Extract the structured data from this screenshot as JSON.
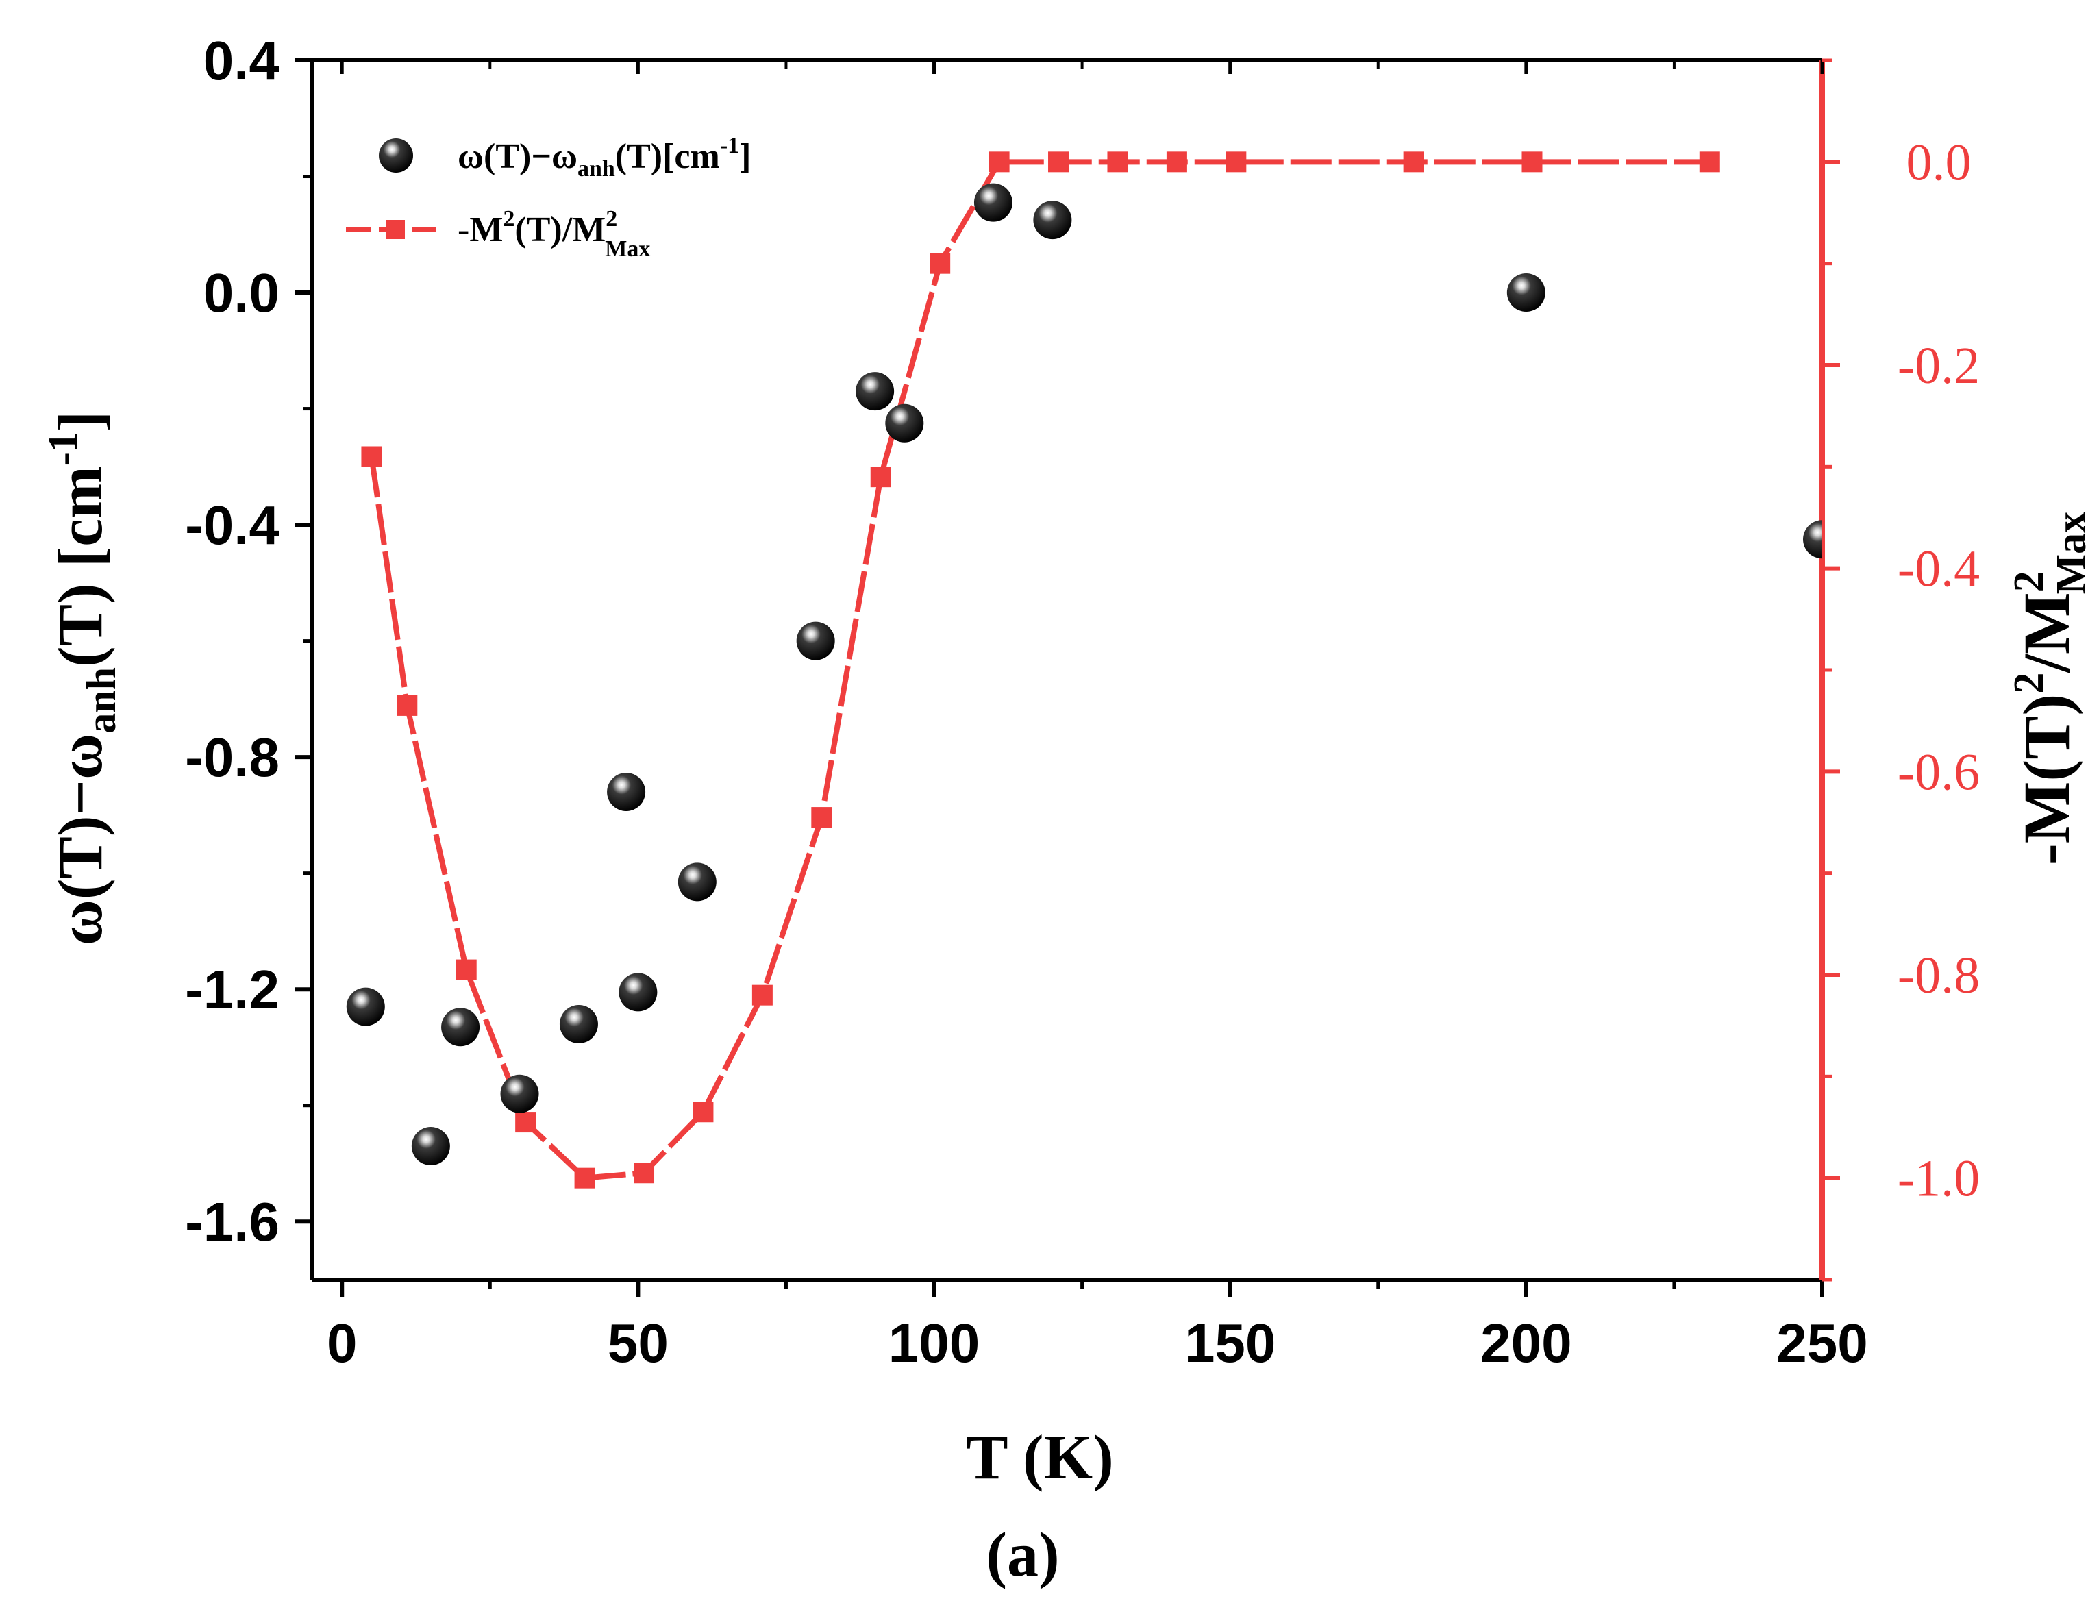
{
  "chart_data": {
    "type": "scatter+line (dual y-axis)",
    "caption": "(a)",
    "x_axis": {
      "label": "T (K)",
      "range": [
        -5,
        250
      ],
      "ticks": [
        0,
        50,
        100,
        150,
        200,
        250
      ],
      "tick_labels": [
        "0",
        "50",
        "100",
        "150",
        "200",
        "250"
      ]
    },
    "y_left": {
      "label_parts": {
        "a": "ω(T)−ω",
        "sub": "anh",
        "b": "(T) [cm",
        "sup": "-1",
        "c": "]"
      },
      "range": [
        -1.7,
        0.4
      ],
      "ticks": [
        0.4,
        0.0,
        -0.4,
        -0.8,
        -1.2,
        -1.6
      ],
      "tick_labels": [
        "0.4",
        "0.0",
        "-0.4",
        "-0.8",
        "-1.2",
        "-1.6"
      ]
    },
    "y_right": {
      "label_parts": {
        "a": "-M(T)",
        "sup1": "2",
        "b": "/M",
        "sup2": "2",
        "sub": "Max"
      },
      "range": [
        -1.1,
        0.1
      ],
      "ticks": [
        0.0,
        -0.2,
        -0.4,
        -0.6,
        -0.8,
        -1.0
      ],
      "tick_labels": [
        "0.0",
        "-0.2",
        "-0.4",
        "-0.6",
        "-0.8",
        "-1.0"
      ],
      "color": "#ef3e3e"
    },
    "series": [
      {
        "name": "ω(T)−ωanh(T)[cm-1]",
        "legend_parts": {
          "a": "ω(T)−ω",
          "sub": "anh",
          "b": "(T)[cm",
          "sup": "-1",
          "c": "]"
        },
        "axis": "left",
        "style": "black spheres",
        "color": "#000000",
        "points": [
          {
            "x": 4,
            "y": -1.23
          },
          {
            "x": 15,
            "y": -1.47
          },
          {
            "x": 20,
            "y": -1.265
          },
          {
            "x": 30,
            "y": -1.38
          },
          {
            "x": 40,
            "y": -1.26
          },
          {
            "x": 48,
            "y": -0.86
          },
          {
            "x": 50,
            "y": -1.205
          },
          {
            "x": 60,
            "y": -1.015
          },
          {
            "x": 80,
            "y": -0.6
          },
          {
            "x": 90,
            "y": -0.17
          },
          {
            "x": 95,
            "y": -0.225
          },
          {
            "x": 110,
            "y": 0.155
          },
          {
            "x": 120,
            "y": 0.125
          },
          {
            "x": 200,
            "y": 0.0
          },
          {
            "x": 250,
            "y": -0.425
          }
        ]
      },
      {
        "name": "-M2(T)/M2Max",
        "legend_parts": {
          "a": "-M",
          "sup1": "2",
          "b": "(T)/M",
          "sup2": "2",
          "sub": "Max"
        },
        "axis": "right",
        "style": "red squares with line",
        "color": "#ef3e3e",
        "points": [
          {
            "x": 5,
            "y": -0.29
          },
          {
            "x": 11,
            "y": -0.535
          },
          {
            "x": 21,
            "y": -0.795
          },
          {
            "x": 31,
            "y": -0.945
          },
          {
            "x": 41,
            "y": -1.0
          },
          {
            "x": 51,
            "y": -0.995
          },
          {
            "x": 61,
            "y": -0.935
          },
          {
            "x": 71,
            "y": -0.82
          },
          {
            "x": 81,
            "y": -0.645
          },
          {
            "x": 91,
            "y": -0.31
          },
          {
            "x": 101,
            "y": -0.1
          },
          {
            "x": 111,
            "y": 0.0
          },
          {
            "x": 121,
            "y": 0.0
          },
          {
            "x": 131,
            "y": 0.0
          },
          {
            "x": 141,
            "y": 0.0
          },
          {
            "x": 151,
            "y": 0.0
          },
          {
            "x": 181,
            "y": 0.0
          },
          {
            "x": 201,
            "y": 0.0
          },
          {
            "x": 231,
            "y": 0.0
          }
        ]
      }
    ]
  }
}
